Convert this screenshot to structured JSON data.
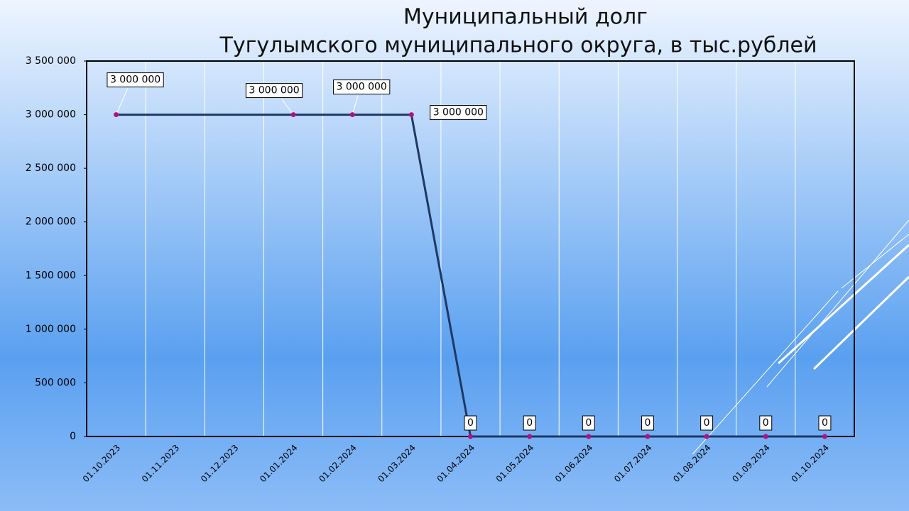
{
  "chart_data": {
    "type": "line",
    "title": [
      "Муниципальный долг",
      "Тугулымского муниципального округа, в тыс.рублей"
    ],
    "categories": [
      "01.10.2023",
      "01.11.2023",
      "01.12.2023",
      "01.01.2024",
      "01.02.2024",
      "01.03.2024",
      "01.04.2024",
      "01.05.2024",
      "01.06.2024",
      "01.07.2024",
      "01.08.2024",
      "01.09.2024",
      "01.10.2024"
    ],
    "series": [
      {
        "color": "#1f3864",
        "marker_color": "#b0127f",
        "x": [
          "01.10.2023",
          "01.01.2024",
          "01.02.2024",
          "01.03.2024",
          "01.04.2024",
          "01.05.2024",
          "01.06.2024",
          "01.07.2024",
          "01.08.2024",
          "01.09.2024",
          "01.10.2024"
        ],
        "values": [
          3000000,
          3000000,
          3000000,
          3000000,
          0,
          0,
          0,
          0,
          0,
          0,
          0
        ],
        "value_labels": [
          "3 000 000",
          "3 000 000",
          "3 000 000",
          "3 000 000",
          "0",
          "0",
          "0",
          "0",
          "0",
          "0",
          "0"
        ]
      }
    ],
    "ylim": [
      0,
      3500000
    ],
    "yticks": [
      0,
      {
        "value": 500000,
        "label": "500 000"
      },
      {
        "value": 1000000,
        "label": "1 000 000"
      },
      {
        "value": 1500000,
        "label": "1 500 000"
      },
      {
        "value": 2000000,
        "label": "2 000 000"
      },
      {
        "value": 2500000,
        "label": "2 500 000"
      },
      {
        "value": 3000000,
        "label": "3 000 000"
      },
      {
        "value": 3500000,
        "label": "3 500 000"
      }
    ],
    "grid": true
  }
}
